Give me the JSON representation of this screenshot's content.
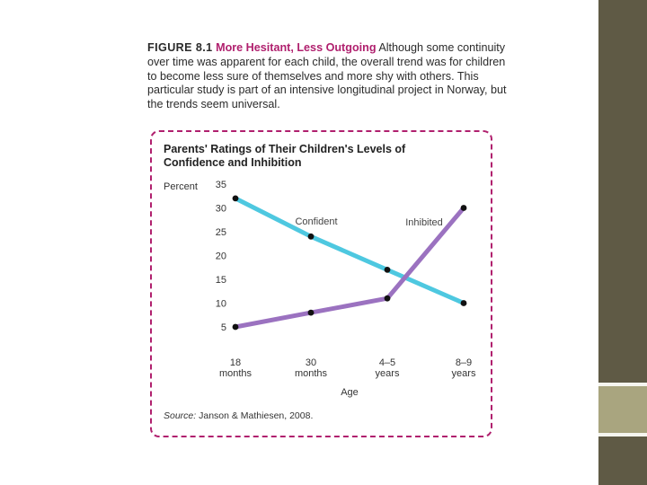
{
  "caption": {
    "figure_label": "FIGURE 8.1",
    "title": "More Hesitant, Less Outgoing",
    "body": "Although some continuity over time was apparent for each child, the overall trend was for children to become less sure of themselves and more shy with others. This particular study is part of an intensive longitudinal project in Norway, but the trends seem universal."
  },
  "source": {
    "label": "Source:",
    "text": "Janson & Mathiesen, 2008."
  },
  "colors": {
    "accent": "#b0206e",
    "confident": "#4ec8e0",
    "inhibited": "#9b72c0",
    "sidebar": "#5f5a45",
    "sidebar_block": "#a9a57f"
  },
  "chart_data": {
    "type": "line",
    "title": "Parents' Ratings of Their Children's Levels of Confidence and Inhibition",
    "ylabel": "Percent",
    "xlabel": "Age",
    "ylim": [
      0,
      35
    ],
    "yticks": [
      5,
      10,
      15,
      20,
      25,
      30,
      35
    ],
    "categories": [
      {
        "line1": "18",
        "line2": "months"
      },
      {
        "line1": "30",
        "line2": "months"
      },
      {
        "line1": "4–5",
        "line2": "years"
      },
      {
        "line1": "8–9",
        "line2": "years"
      }
    ],
    "series": [
      {
        "name": "Confident",
        "color": "#4ec8e0",
        "values": [
          32,
          24,
          17,
          10
        ]
      },
      {
        "name": "Inhibited",
        "color": "#9b72c0",
        "values": [
          5,
          8,
          11,
          30
        ]
      }
    ]
  }
}
